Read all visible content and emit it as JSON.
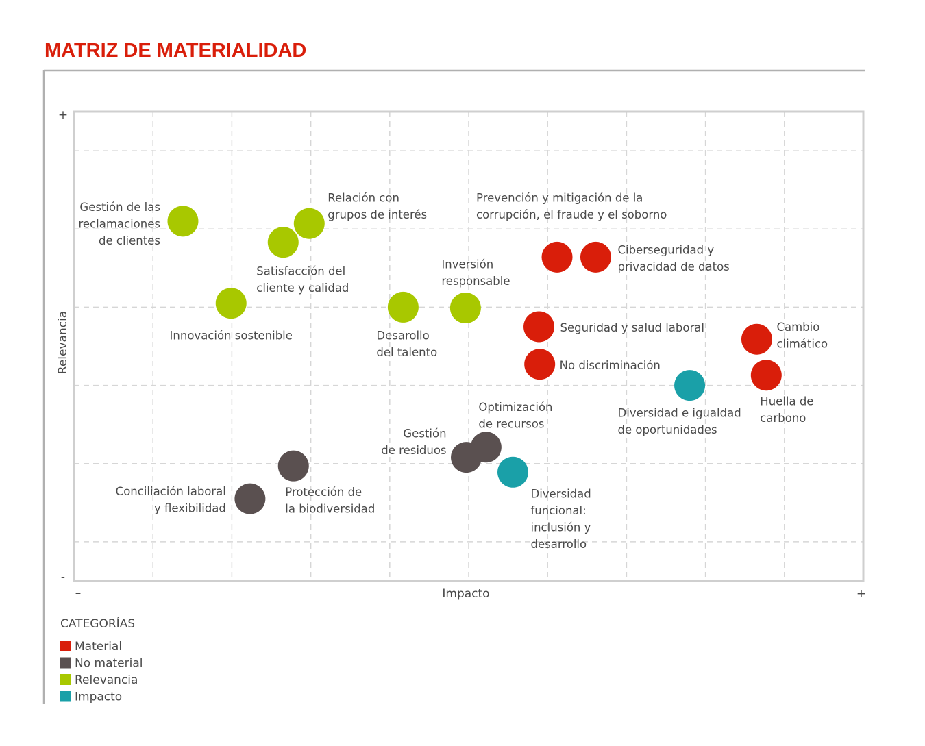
{
  "title": "MATRIZ DE MATERIALIDAD",
  "chart_data": {
    "type": "scatter",
    "title": "MATRIZ DE MATERIALIDAD",
    "xlabel": "Impacto",
    "ylabel": "Relevancia",
    "x_min_label": "–",
    "x_max_label": "+",
    "y_min_label": "-",
    "y_max_label": "+",
    "xlim": [
      0,
      10
    ],
    "ylim": [
      0,
      6
    ],
    "grid": true,
    "legend_title": "CATEGORÍAS",
    "legend_position": "bottom-left",
    "categories": [
      {
        "key": "material",
        "name": "Material",
        "color": "#d91e0a"
      },
      {
        "key": "no_material",
        "name": "No material",
        "color": "#5a5050"
      },
      {
        "key": "relevancia",
        "name": "Relevancia",
        "color": "#a8c800"
      },
      {
        "key": "impacto",
        "name": "Impacto",
        "color": "#1aa0a8"
      }
    ],
    "points": [
      {
        "label": [
          "Gestión de las",
          "reclamaciones",
          "de clientes"
        ],
        "x": 1.38,
        "y": 4.6,
        "category": "relevancia"
      },
      {
        "label": [
          "Relación con",
          "grupos de interés"
        ],
        "x": 2.98,
        "y": 4.57,
        "category": "relevancia"
      },
      {
        "label": [
          "Satisfacción del",
          "cliente y calidad"
        ],
        "x": 2.65,
        "y": 4.33,
        "category": "relevancia"
      },
      {
        "label": [
          "Innovación sostenible"
        ],
        "x": 1.99,
        "y": 3.55,
        "category": "relevancia"
      },
      {
        "label": [
          "Desarollo",
          "del talento"
        ],
        "x": 4.17,
        "y": 3.5,
        "category": "relevancia"
      },
      {
        "label": [
          "Inversión",
          "responsable"
        ],
        "x": 4.96,
        "y": 3.49,
        "category": "relevancia"
      },
      {
        "label": [
          "Prevención y mitigación de la",
          "corrupción, el fraude y el soborno"
        ],
        "x": 6.12,
        "y": 4.14,
        "category": "material"
      },
      {
        "label": [
          "Ciberseguridad y",
          "privacidad de datos"
        ],
        "x": 6.61,
        "y": 4.14,
        "category": "material"
      },
      {
        "label": [
          "Seguridad y salud laboral"
        ],
        "x": 5.89,
        "y": 3.25,
        "category": "material"
      },
      {
        "label": [
          "No discriminación"
        ],
        "x": 5.9,
        "y": 2.77,
        "category": "material"
      },
      {
        "label": [
          "Cambio",
          "climático"
        ],
        "x": 8.65,
        "y": 3.09,
        "category": "material"
      },
      {
        "label": [
          "Huella de",
          "carbono"
        ],
        "x": 8.77,
        "y": 2.63,
        "category": "material"
      },
      {
        "label": [
          "Diversidad e igualdad",
          "de oportunidades"
        ],
        "x": 7.8,
        "y": 2.5,
        "category": "impacto"
      },
      {
        "label": [
          "Diversidad",
          "funcional:",
          "inclusión y",
          "desarrollo"
        ],
        "x": 5.56,
        "y": 1.39,
        "category": "impacto"
      },
      {
        "label": [
          "Optimización",
          "de recursos"
        ],
        "x": 5.22,
        "y": 1.71,
        "category": "no_material"
      },
      {
        "label": [
          "Gestión",
          "de residuos"
        ],
        "x": 4.97,
        "y": 1.58,
        "category": "no_material"
      },
      {
        "label": [
          "Protección de",
          "la biodiversidad"
        ],
        "x": 2.78,
        "y": 1.47,
        "category": "no_material"
      },
      {
        "label": [
          "Conciliación laboral",
          "y flexibilidad"
        ],
        "x": 2.23,
        "y": 1.05,
        "category": "no_material"
      }
    ]
  }
}
